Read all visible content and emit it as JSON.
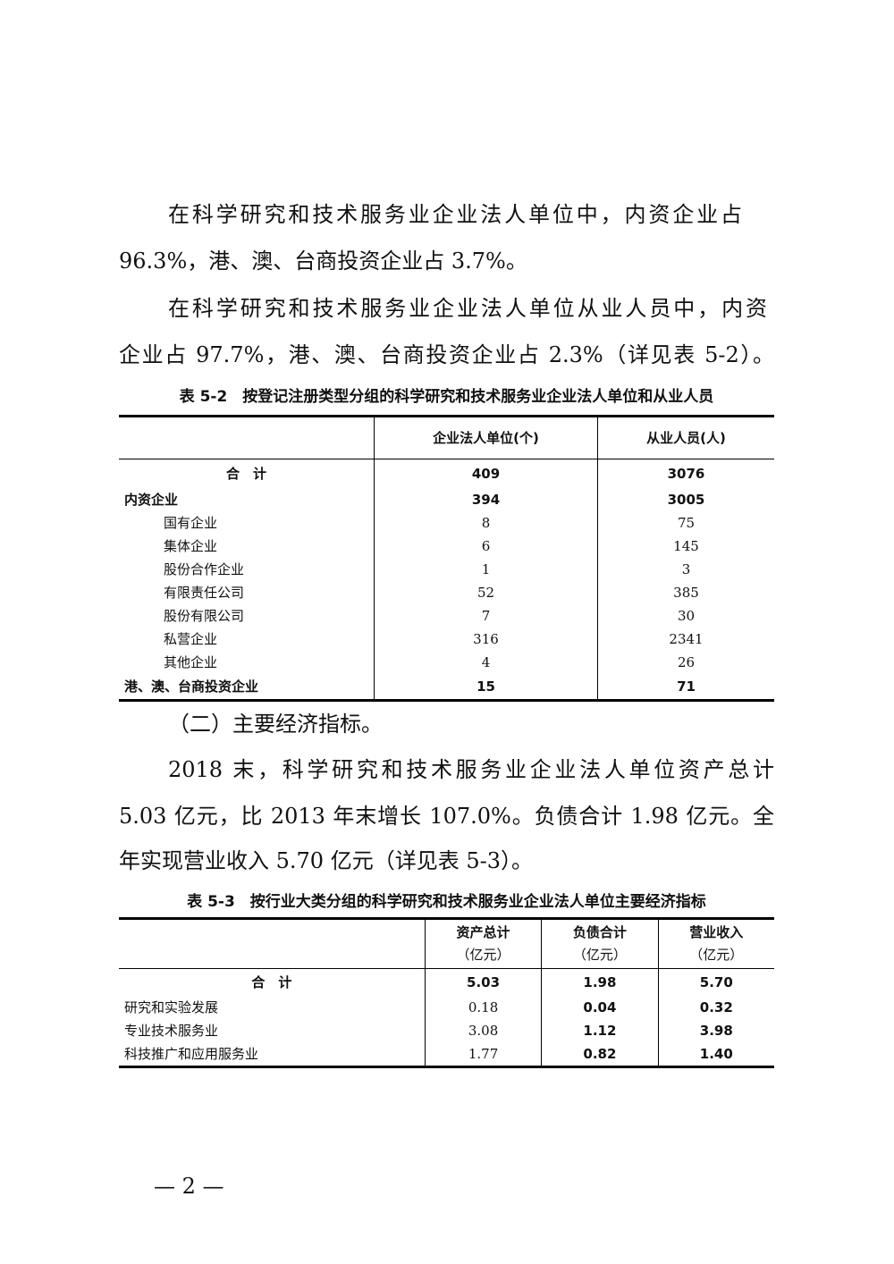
{
  "paragraphs": {
    "p1": [
      "在科学研究和技术服务业企业法人单位中，内资企业占",
      "96.3%，港、澳、台商投资企业占 3.7%。"
    ],
    "p2": [
      "在科学研究和技术服务业企业法人单位从业人员中，内资",
      "企业占 97.7%，港、澳、台商投资企业占 2.3%（详见表 5-2）。"
    ],
    "h2": "（二）主要经济指标。",
    "p3": [
      "2018 末，科学研究和技术服务业企业法人单位资产总计",
      "5.03 亿元，比 2013 年末增长 107.0%。负债合计 1.98 亿元。全",
      "年实现营业收入 5.70 亿元（详见表 5-3）。"
    ]
  },
  "table52": {
    "caption": "表 5-2　按登记注册类型分组的科学研究和技术服务业企业法人单位和从业人员",
    "headers": [
      "",
      "企业法人单位(个)",
      "从业人员(人)"
    ],
    "rows": [
      {
        "label": "合　计",
        "units": "409",
        "staff": "3076"
      },
      {
        "label": "内资企业",
        "units": "394",
        "staff": "3005"
      },
      {
        "label": "国有企业",
        "units": "8",
        "staff": "75"
      },
      {
        "label": "集体企业",
        "units": "6",
        "staff": "145"
      },
      {
        "label": "股份合作企业",
        "units": "1",
        "staff": "3"
      },
      {
        "label": "有限责任公司",
        "units": "52",
        "staff": "385"
      },
      {
        "label": "股份有限公司",
        "units": "7",
        "staff": "30"
      },
      {
        "label": "私营企业",
        "units": "316",
        "staff": "2341"
      },
      {
        "label": "其他企业",
        "units": "4",
        "staff": "26"
      },
      {
        "label": "港、澳、台商投资企业",
        "units": "15",
        "staff": "71"
      }
    ]
  },
  "table53": {
    "caption": "表 5-3　按行业大类分组的科学研究和技术服务业企业法人单位主要经济指标",
    "headers": [
      [
        "",
        ""
      ],
      [
        "资产总计",
        "（亿元）"
      ],
      [
        "负债合计",
        "（亿元）"
      ],
      [
        "营业收入",
        "（亿元）"
      ]
    ],
    "rows": [
      {
        "label": "合　计",
        "assets": "5.03",
        "liabilities": "1.98",
        "revenue": "5.70"
      },
      {
        "label": "研究和实验发展",
        "assets": "0.18",
        "liabilities": "0.04",
        "revenue": "0.32"
      },
      {
        "label": "专业技术服务业",
        "assets": "3.08",
        "liabilities": "1.12",
        "revenue": "3.98"
      },
      {
        "label": "科技推广和应用服务业",
        "assets": "1.77",
        "liabilities": "0.82",
        "revenue": "1.40"
      }
    ]
  },
  "page_number": "— 2 —"
}
